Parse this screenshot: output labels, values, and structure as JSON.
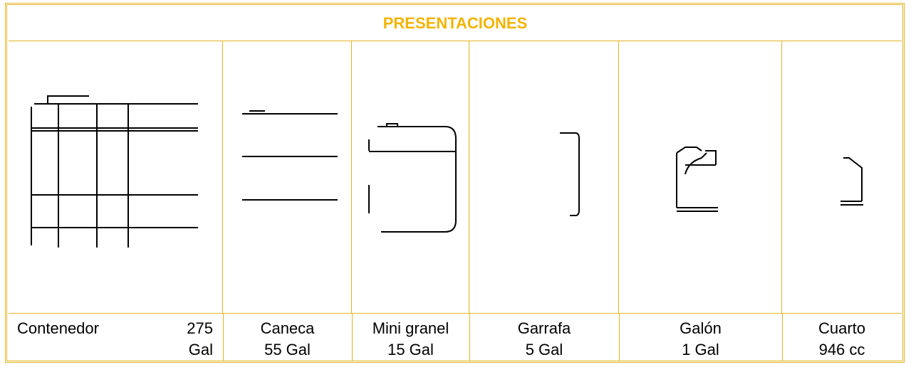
{
  "table": {
    "title": "PRESENTACIONES",
    "items": [
      {
        "line1": "Contenedor 275",
        "line2": "Gal"
      },
      {
        "line1": "Caneca",
        "line2": "55 Gal"
      },
      {
        "line1": "Mini granel",
        "line2": "15 Gal"
      },
      {
        "line1": "Garrafa",
        "line2": "5 Gal"
      },
      {
        "line1": "Galón",
        "line2": "1 Gal"
      },
      {
        "line1": "Cuarto",
        "line2": "946 cc"
      }
    ]
  }
}
